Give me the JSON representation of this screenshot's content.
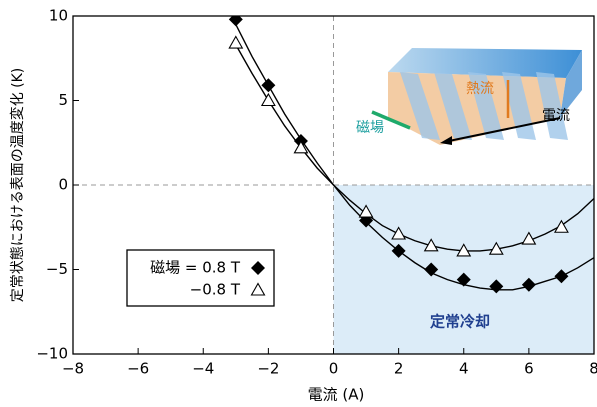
{
  "chart_data": {
    "type": "scatter",
    "xlabel": "電流 (A)",
    "ylabel": "定常状態における表面の温度変化 (K)",
    "xlim": [
      -8,
      8
    ],
    "ylim": [
      -10,
      10
    ],
    "xticks": [
      {
        "value": -8,
        "label": "−8"
      },
      {
        "value": -6,
        "label": "−6"
      },
      {
        "value": -4,
        "label": "−4"
      },
      {
        "value": -2,
        "label": "−2"
      },
      0,
      2,
      4,
      6,
      8
    ],
    "yticks": [
      {
        "value": -10,
        "label": "−10"
      },
      {
        "value": -5,
        "label": "−5"
      },
      0,
      5,
      10
    ],
    "x": [
      -3,
      -2,
      -1,
      1,
      2,
      3,
      4,
      5,
      6,
      7
    ],
    "series": [
      {
        "name": "磁場 = 0.8 T",
        "marker": "diamond",
        "color": "#000000",
        "values": [
          9.8,
          5.9,
          2.6,
          -2.1,
          -3.9,
          -5.0,
          -5.6,
          -6.0,
          -5.9,
          -5.4
        ],
        "fit_x": [
          -3,
          -2.5,
          -2,
          -1.5,
          -1,
          -0.5,
          0,
          0.5,
          1,
          1.5,
          2,
          2.5,
          3,
          3.5,
          4,
          4.5,
          5,
          5.5,
          6,
          6.5,
          7,
          7.5,
          8
        ],
        "fit_values": [
          9.5,
          7.6,
          5.9,
          4.2,
          2.7,
          1.3,
          0,
          -1.2,
          -2.2,
          -3.1,
          -3.9,
          -4.6,
          -5.2,
          -5.6,
          -5.9,
          -6.1,
          -6.2,
          -6.2,
          -6.0,
          -5.7,
          -5.4,
          -4.9,
          -4.3
        ]
      },
      {
        "name": "−0.8 T",
        "marker": "triangle",
        "color": "#000000",
        "values": [
          8.4,
          5.0,
          2.2,
          -1.6,
          -2.9,
          -3.6,
          -3.9,
          -3.8,
          -3.2,
          -2.5
        ],
        "fit_x": [
          -3,
          -2.5,
          -2,
          -1.5,
          -1,
          -0.5,
          0,
          0.5,
          1,
          1.5,
          2,
          2.5,
          3,
          3.5,
          4,
          4.5,
          5,
          5.5,
          6,
          6.5,
          7,
          7.5,
          8
        ],
        "fit_values": [
          8.3,
          6.6,
          5.0,
          3.5,
          2.2,
          1.0,
          0,
          -0.9,
          -1.7,
          -2.4,
          -2.9,
          -3.3,
          -3.6,
          -3.8,
          -3.9,
          -3.9,
          -3.8,
          -3.6,
          -3.3,
          -2.9,
          -2.4,
          -1.7,
          -0.8
        ]
      }
    ],
    "annotations": [
      "定常冷却",
      "熱流",
      "磁場",
      "電流"
    ]
  }
}
